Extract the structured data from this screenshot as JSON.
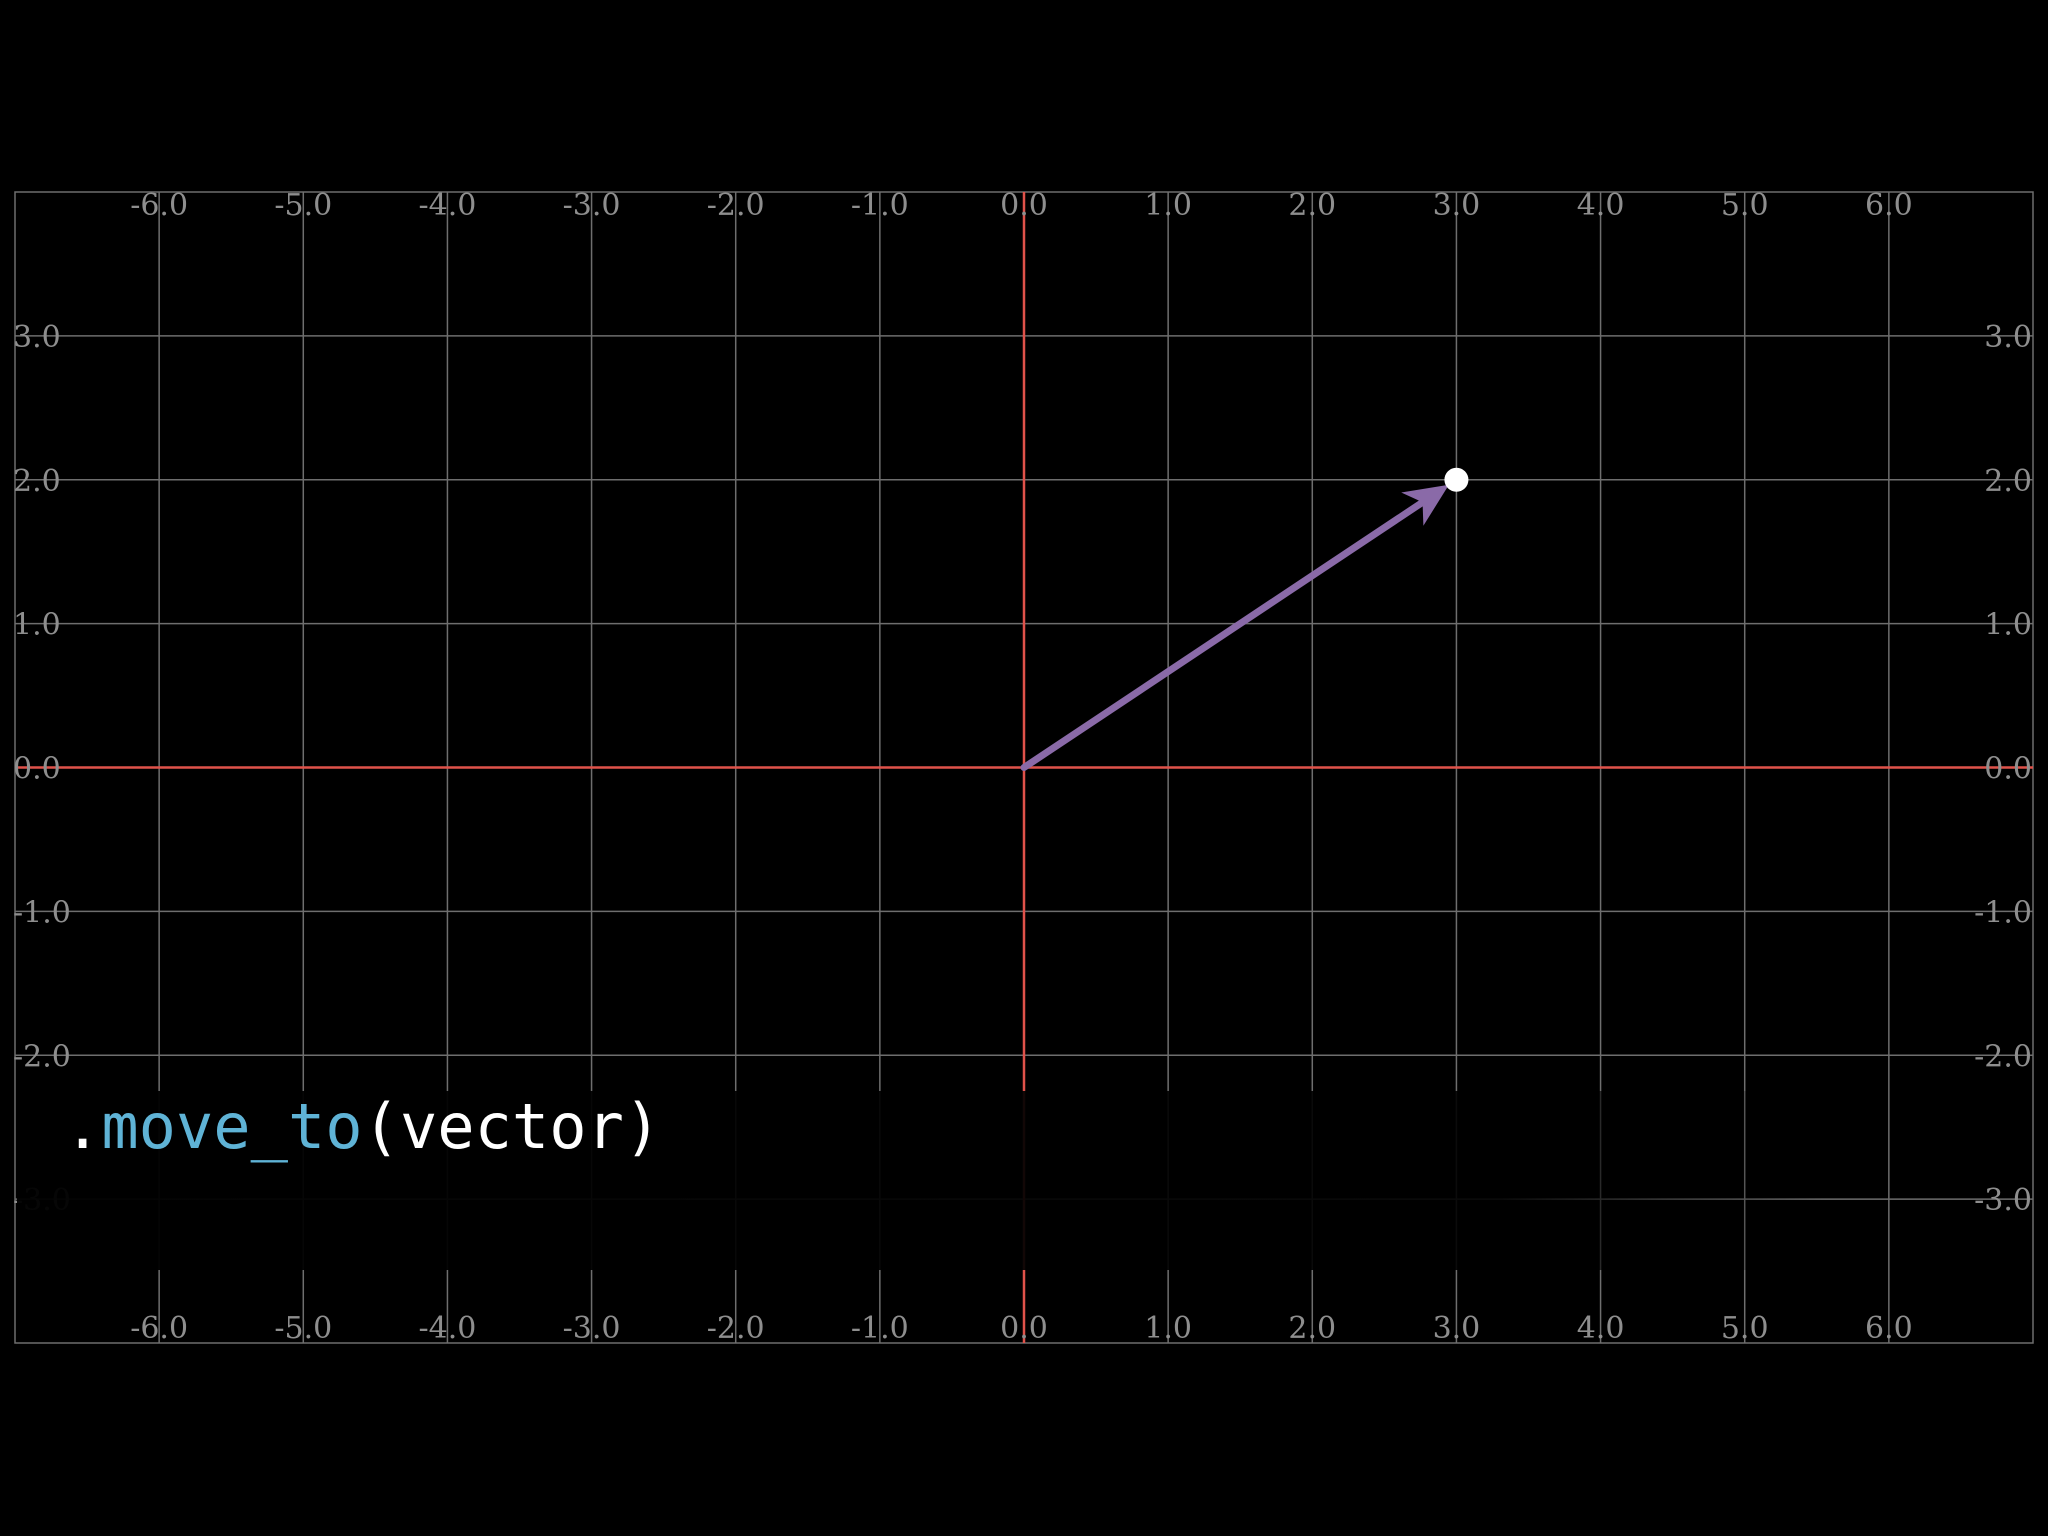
{
  "plane": {
    "x_range": [
      -7,
      7
    ],
    "y_range": [
      -4,
      4
    ],
    "x_ticks": [
      -6,
      -5,
      -4,
      -3,
      -2,
      -1,
      0,
      1,
      2,
      3,
      4,
      5,
      6
    ],
    "y_ticks": [
      -3,
      -2,
      -1,
      0,
      1,
      2,
      3
    ],
    "x_tick_labels": [
      "-6.0",
      "-5.0",
      "-4.0",
      "-3.0",
      "-2.0",
      "-1.0",
      "0.0",
      "1.0",
      "2.0",
      "3.0",
      "4.0",
      "5.0",
      "6.0"
    ],
    "y_tick_labels": [
      "-3.0",
      "-2.0",
      "-1.0",
      "0.0",
      "1.0",
      "2.0",
      "3.0"
    ],
    "grid": true,
    "labels_on": [
      "top",
      "bottom",
      "left",
      "right"
    ]
  },
  "vector": {
    "from": [
      0,
      0
    ],
    "to": [
      3,
      2
    ]
  },
  "dot": {
    "at": [
      3,
      2
    ]
  },
  "code": {
    "dot": ".",
    "method": "move_to",
    "open_paren": "(",
    "arg": "vector",
    "close_paren": ")"
  },
  "colors": {
    "background": "#000000",
    "grid": "#6e6e6e",
    "axis": "#e0524a",
    "vector": "#8a6aa8",
    "dot": "#ffffff",
    "tick_label": "#8e8e8e",
    "method": "#5fb3d6",
    "code_text": "#ffffff"
  }
}
